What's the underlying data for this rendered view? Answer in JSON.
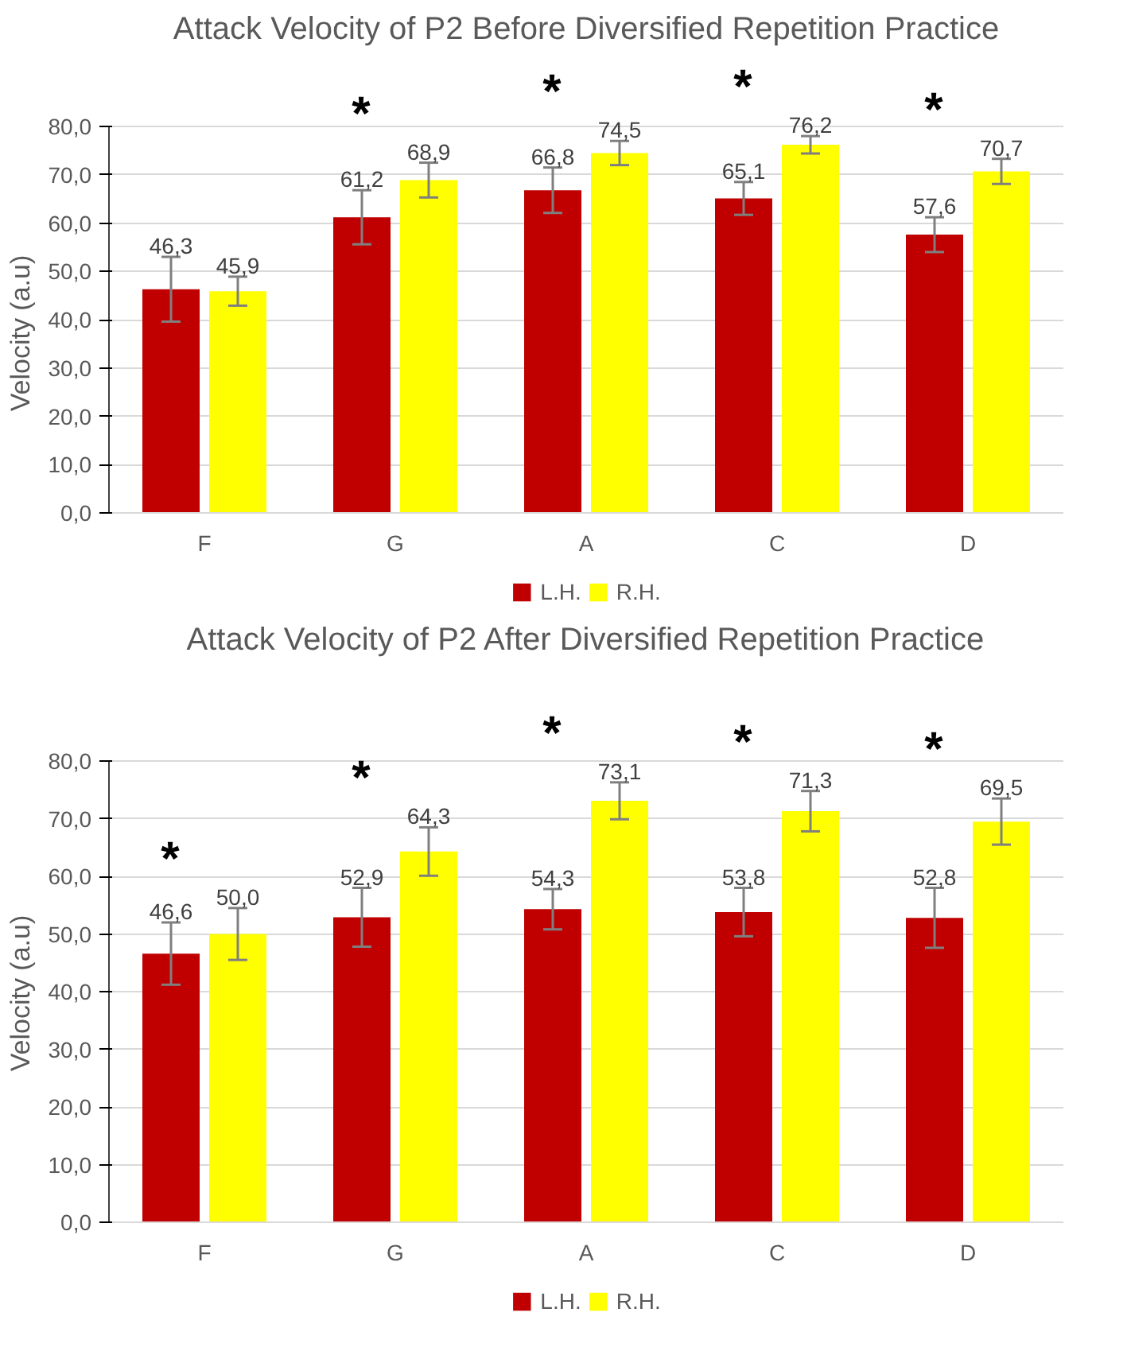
{
  "chart_data": [
    {
      "type": "bar",
      "title": "Attack Velocity of P2 Before Diversified Repetition Practice",
      "ylabel": "Velocity (a.u)",
      "categories": [
        "F",
        "G",
        "A",
        "C",
        "D"
      ],
      "series": [
        {
          "name": "L.H.",
          "color": "#c00000",
          "values": [
            46.3,
            61.2,
            66.8,
            65.1,
            57.6
          ],
          "errors": [
            6.7,
            5.6,
            4.7,
            3.4,
            3.6
          ],
          "value_labels": [
            "46,3",
            "61,2",
            "66,8",
            "65,1",
            "57,6"
          ]
        },
        {
          "name": "R.H.",
          "color": "#ffff00",
          "values": [
            45.9,
            68.9,
            74.5,
            76.2,
            70.7
          ],
          "errors": [
            3.0,
            3.6,
            2.5,
            1.8,
            2.6
          ],
          "value_labels": [
            "45,9",
            "68,9",
            "74,5",
            "76,2",
            "70,7"
          ]
        }
      ],
      "ylim": [
        0,
        80
      ],
      "yticks": [
        {
          "value": 0,
          "label": "0,0"
        },
        {
          "value": 10,
          "label": "10,0"
        },
        {
          "value": 20,
          "label": "20,0"
        },
        {
          "value": 30,
          "label": "30,0"
        },
        {
          "value": 40,
          "label": "40,0"
        },
        {
          "value": 50,
          "label": "50,0"
        },
        {
          "value": 60,
          "label": "60,0"
        },
        {
          "value": 70,
          "label": "70,0"
        },
        {
          "value": 80,
          "label": "80,0"
        }
      ],
      "grid": "y",
      "legend": "bottom",
      "annotations": [
        "*",
        "*",
        "*",
        "*"
      ]
    },
    {
      "type": "bar",
      "title": "Attack Velocity of P2 After Diversified Repetition Practice",
      "ylabel": "Velocity (a.u)",
      "categories": [
        "F",
        "G",
        "A",
        "C",
        "D"
      ],
      "series": [
        {
          "name": "L.H.",
          "color": "#c00000",
          "values": [
            46.6,
            52.9,
            54.3,
            53.8,
            52.8
          ],
          "errors": [
            5.4,
            5.1,
            3.5,
            4.2,
            5.2
          ],
          "value_labels": [
            "46,6",
            "52,9",
            "54,3",
            "53,8",
            "52,8"
          ]
        },
        {
          "name": "R.H.",
          "color": "#ffff00",
          "values": [
            50.0,
            64.3,
            73.1,
            71.3,
            69.5
          ],
          "errors": [
            4.5,
            4.2,
            3.2,
            3.5,
            4.0
          ],
          "value_labels": [
            "50,0",
            "64,3",
            "73,1",
            "71,3",
            "69,5"
          ]
        }
      ],
      "ylim": [
        0,
        80
      ],
      "yticks": [
        {
          "value": 0,
          "label": "0,0"
        },
        {
          "value": 10,
          "label": "10,0"
        },
        {
          "value": 20,
          "label": "20,0"
        },
        {
          "value": 30,
          "label": "30,0"
        },
        {
          "value": 40,
          "label": "40,0"
        },
        {
          "value": 50,
          "label": "50,0"
        },
        {
          "value": 60,
          "label": "60,0"
        },
        {
          "value": 70,
          "label": "70,0"
        },
        {
          "value": 80,
          "label": "80,0"
        }
      ],
      "grid": "y",
      "legend": "bottom",
      "annotations": [
        "*",
        "*",
        "*",
        "*",
        "*"
      ]
    }
  ]
}
